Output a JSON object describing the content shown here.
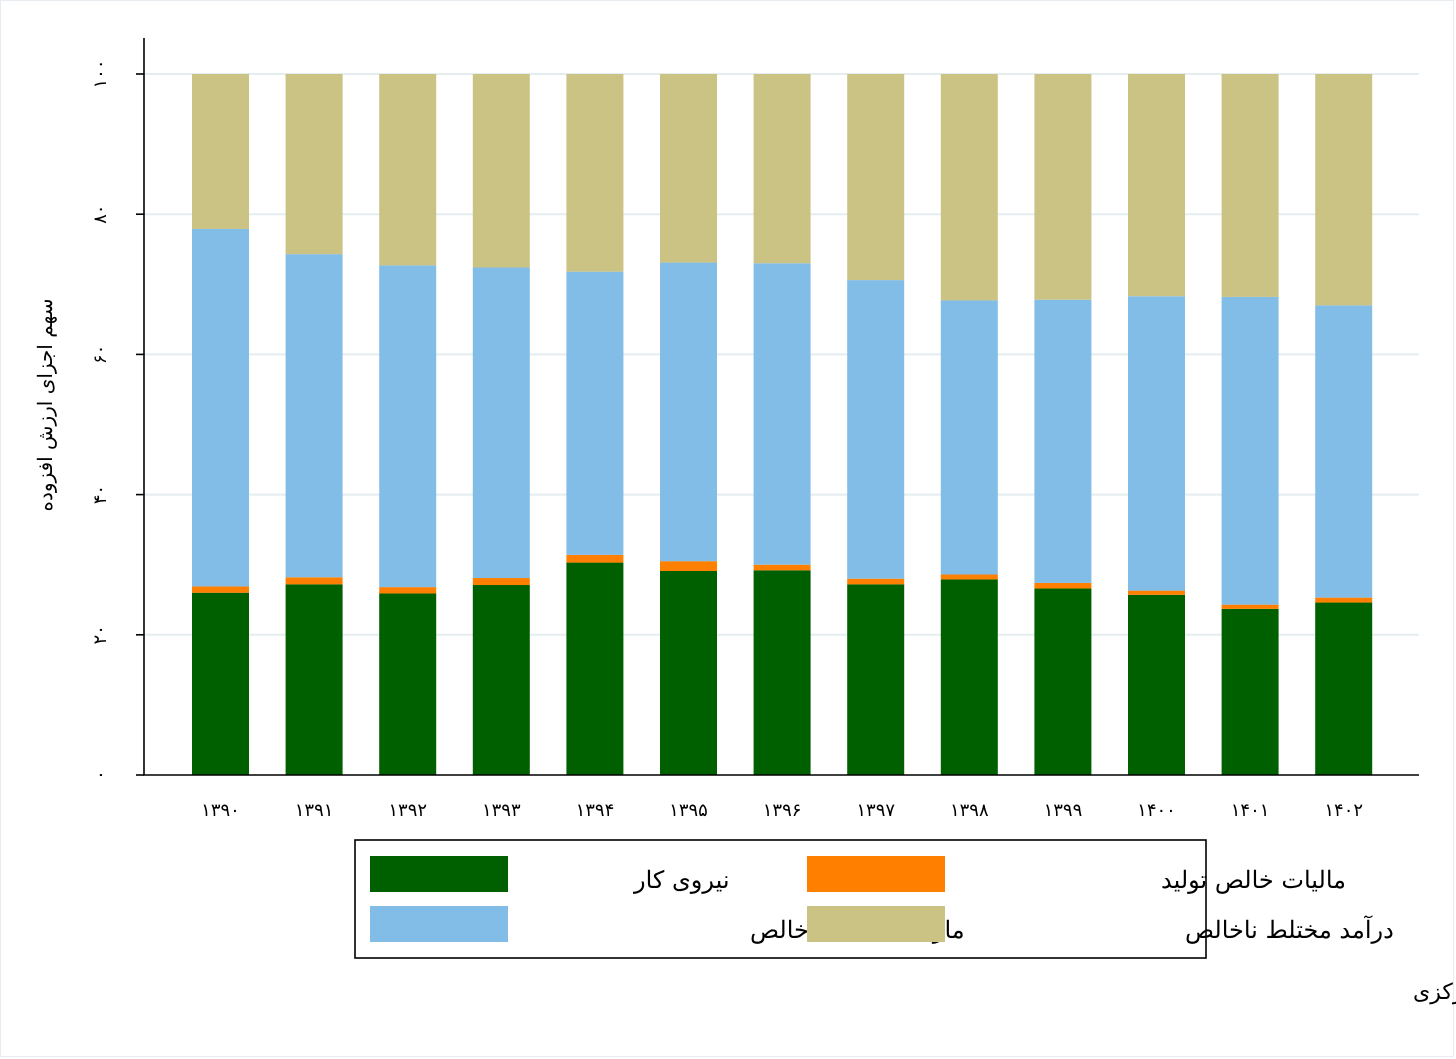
{
  "chart_data": {
    "type": "bar",
    "stacked": true,
    "title": "",
    "xlabel": "",
    "ylabel": "سهم اجزای ارزش افزوده",
    "ylim": [
      0,
      100
    ],
    "yticks": [
      0,
      20,
      40,
      60,
      80,
      100
    ],
    "ytick_labels": [
      "۰",
      "۲۰",
      "۴۰",
      "۶۰",
      "۸۰",
      "۱۰۰"
    ],
    "grid": true,
    "legend_position": "bottom",
    "categories": [
      "۱۳۹۰",
      "۱۳۹۱",
      "۱۳۹۲",
      "۱۳۹۳",
      "۱۳۹۴",
      "۱۳۹۵",
      "۱۳۹۶",
      "۱۳۹۷",
      "۱۳۹۸",
      "۱۳۹۹",
      "۱۴۰۰",
      "۱۴۰۱",
      "۱۴۰۲"
    ],
    "series": [
      {
        "name": "نیروی کار",
        "color": "#006000",
        "values": [
          26.0,
          27.2,
          25.9,
          27.1,
          30.3,
          29.1,
          29.2,
          27.2,
          27.9,
          26.6,
          25.7,
          23.7,
          24.6
        ]
      },
      {
        "name": "مالیات خالص تولید",
        "color": "#ff7f00",
        "values": [
          0.9,
          1.0,
          0.9,
          1.0,
          1.1,
          1.4,
          0.8,
          0.8,
          0.7,
          0.8,
          0.6,
          0.6,
          0.7
        ]
      },
      {
        "name": "مازاد عملیاتی ناخالص",
        "color": "#82bde8",
        "values": [
          51.0,
          46.1,
          45.9,
          44.3,
          40.4,
          42.6,
          43.0,
          42.6,
          39.1,
          40.4,
          42.0,
          43.9,
          41.7
        ]
      },
      {
        "name": "درآمد مختلط ناخالص",
        "color": "#cbc383",
        "values": [
          22.1,
          25.7,
          27.3,
          27.6,
          28.2,
          26.9,
          27.0,
          29.4,
          32.3,
          32.2,
          31.7,
          31.8,
          33.0
        ]
      }
    ],
    "legend_order": [
      0,
      1,
      2,
      3
    ]
  },
  "source_note": "منبع: حساب‌های ملی بانک مرکزی"
}
